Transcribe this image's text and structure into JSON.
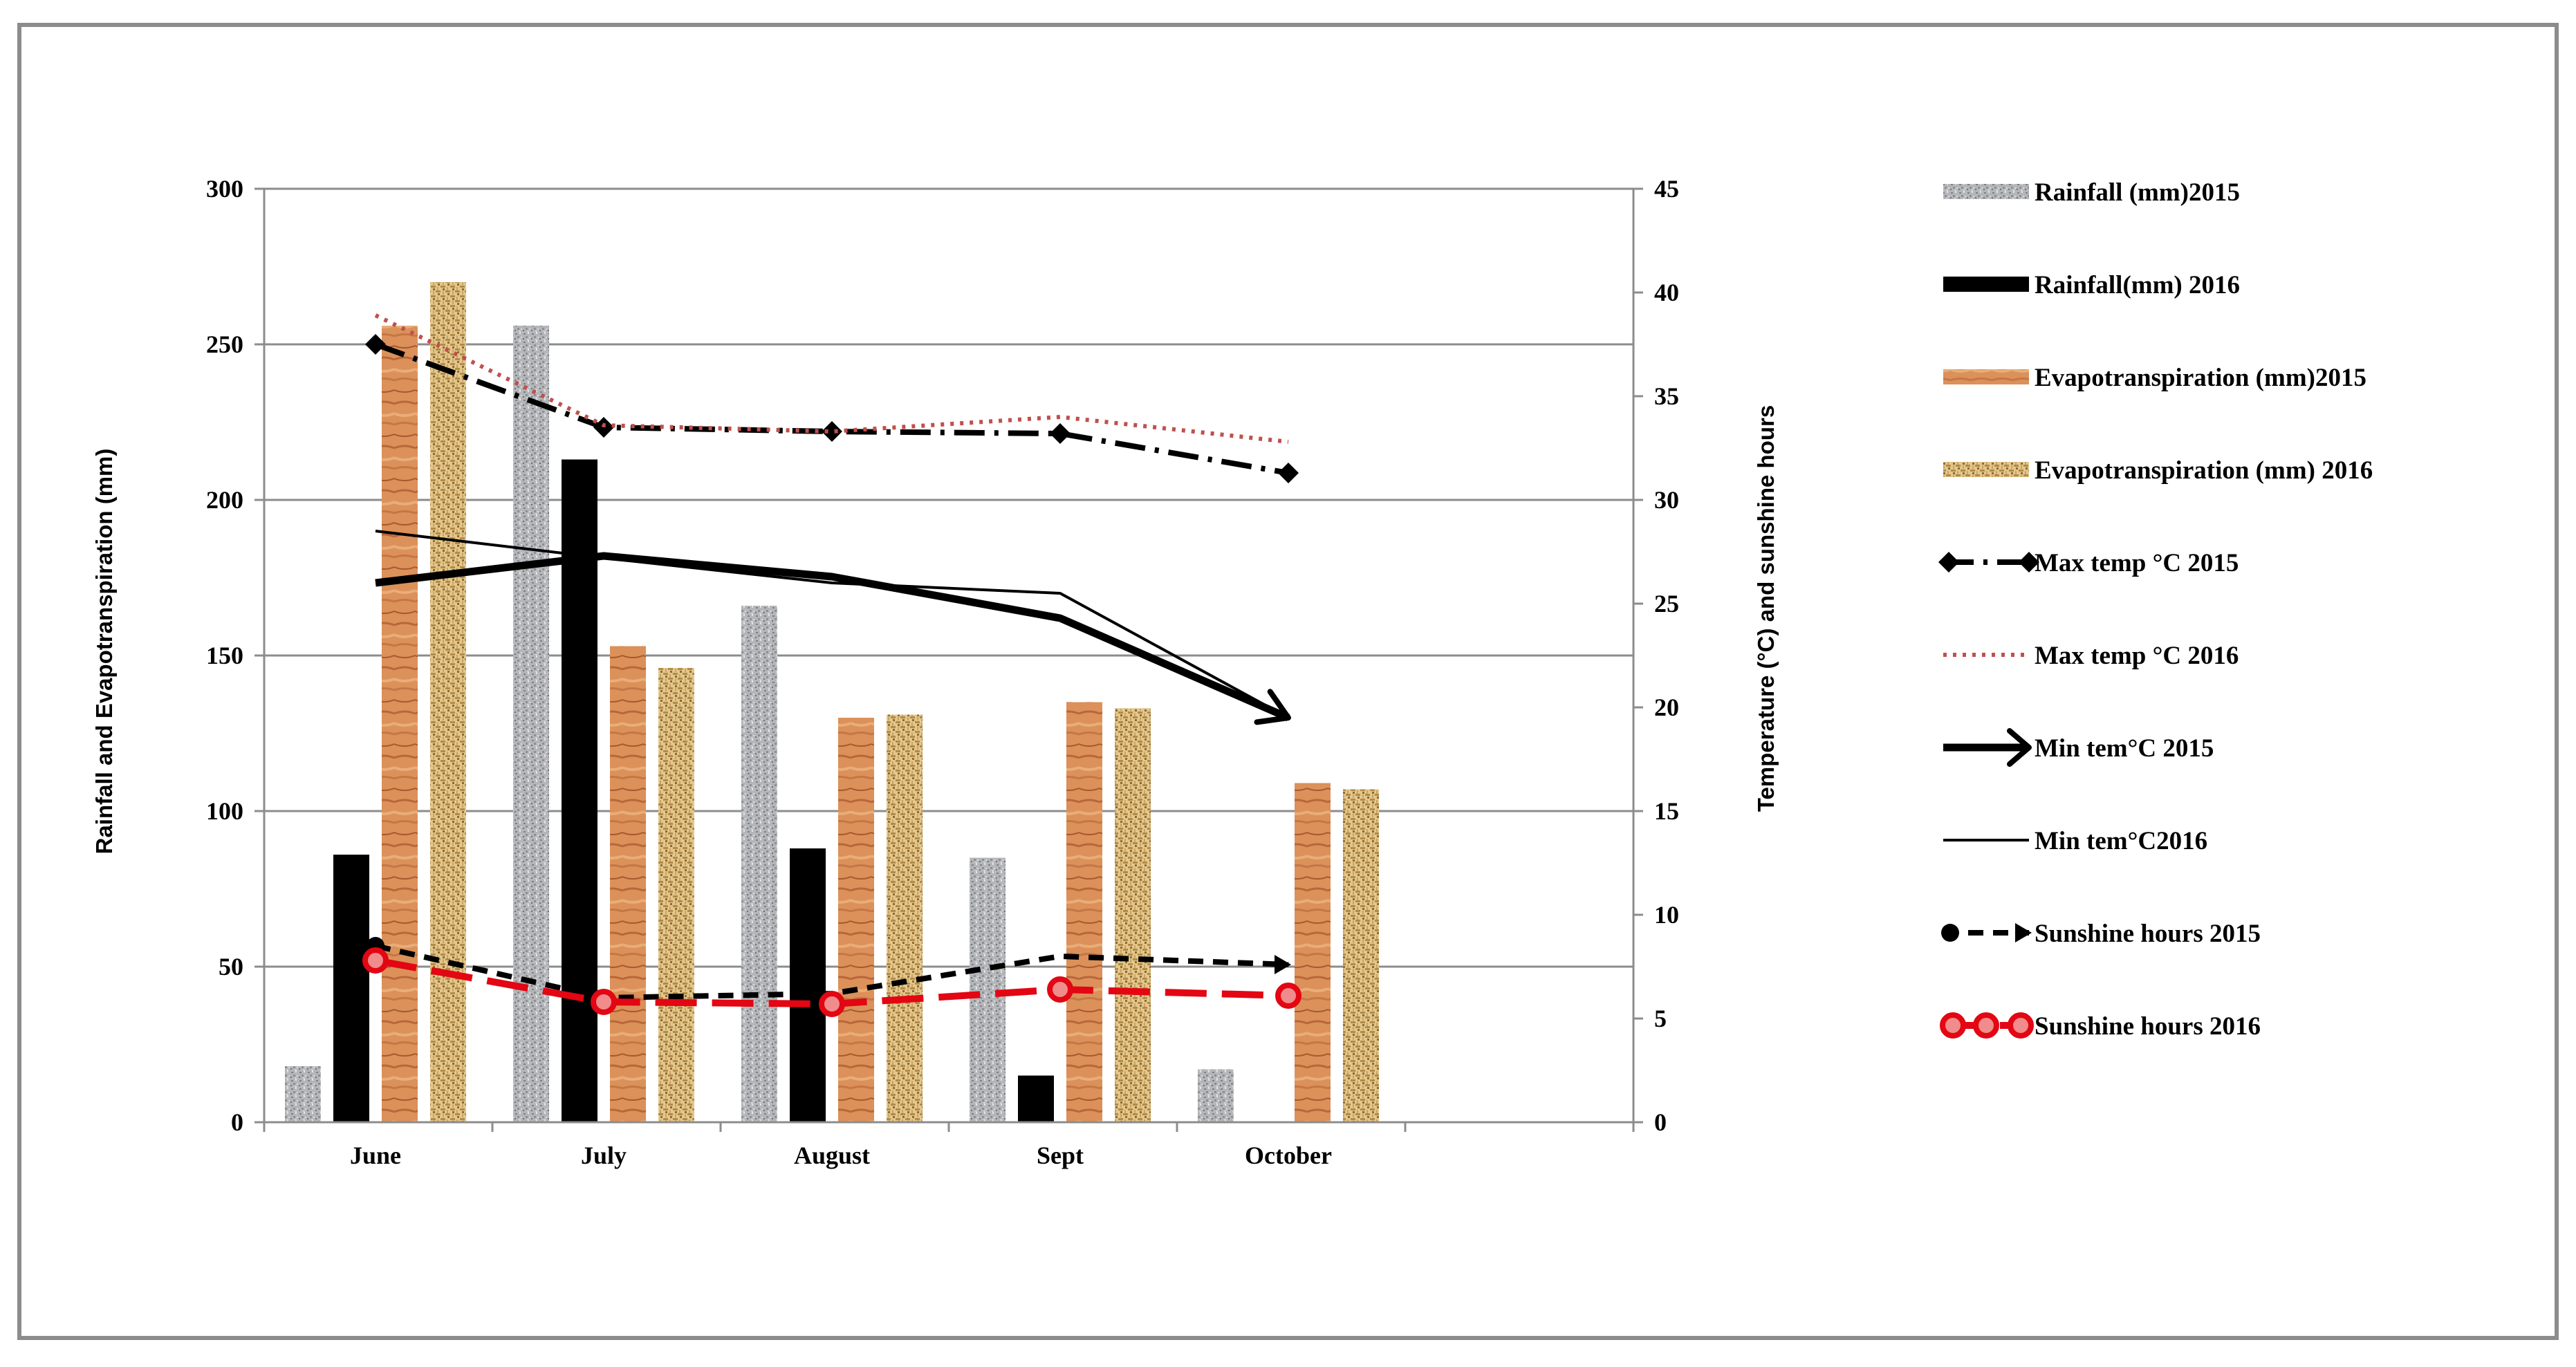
{
  "chart_data": {
    "type": "bar",
    "categories": [
      "June",
      "July",
      "August",
      "Sept",
      "October"
    ],
    "y_left": {
      "label": "Rainfall and Evapotranspiration  (mm)",
      "range": [
        0,
        300
      ],
      "ticks": [
        "0",
        "50",
        "100",
        "150",
        "200",
        "250",
        "300"
      ]
    },
    "y_right": {
      "label": "Temperature (°C) and sunshine hours",
      "range": [
        0,
        45
      ],
      "ticks": [
        "0",
        "5",
        "10",
        "15",
        "20",
        "25",
        "30",
        "35",
        "40",
        "45"
      ]
    },
    "grid": true,
    "legend_position": "right",
    "bar_series": [
      {
        "name": "Rainfall (mm)2015",
        "values": [
          18,
          256,
          166,
          85,
          17
        ],
        "color": "#a9abae",
        "pattern": "granite"
      },
      {
        "name": "Rainfall(mm) 2016",
        "values": [
          86,
          213,
          88,
          15,
          null
        ],
        "color": "#000000",
        "pattern": "solid"
      },
      {
        "name": "Evapotranspiration (mm)2015",
        "values": [
          256,
          153,
          130,
          135,
          109
        ],
        "color": "#d98a52",
        "pattern": "wood"
      },
      {
        "name": "Evapotranspiration (mm) 2016",
        "values": [
          270,
          146,
          131,
          133,
          107
        ],
        "color": "#d2b270",
        "pattern": "weave"
      }
    ],
    "line_series": [
      {
        "name": "Max temp °C 2015",
        "values": [
          37.5,
          33.5,
          33.3,
          33.2,
          31.3
        ],
        "color": "#000000",
        "style": "dash-dot",
        "marker": "diamond",
        "axis": "right"
      },
      {
        "name": "Max temp °C 2016",
        "values": [
          38.9,
          33.6,
          33.3,
          34,
          32.8
        ],
        "color": "#c0504d",
        "style": "dotted",
        "marker": "none",
        "axis": "right"
      },
      {
        "name": "Min tem°C 2015",
        "values": [
          26,
          27.3,
          26.3,
          24.3,
          19.5
        ],
        "color": "#000000",
        "style": "thick",
        "marker": "arrow",
        "axis": "right"
      },
      {
        "name": "Min tem°C2016",
        "values": [
          28.5,
          27.2,
          26,
          25.5,
          19.5
        ],
        "color": "#000000",
        "style": "thin",
        "marker": "none",
        "axis": "right"
      },
      {
        "name": "Sunshine hours 2015",
        "values": [
          8.5,
          6,
          6.2,
          8,
          7.6
        ],
        "color": "#000000",
        "style": "dashed",
        "marker": "circle-arrow",
        "axis": "right"
      },
      {
        "name": "Sunshine hours 2016",
        "values": [
          7.8,
          5.8,
          5.7,
          6.4,
          6.1
        ],
        "color": "#e30613",
        "style": "thick-dashed",
        "marker": "circle",
        "axis": "right"
      }
    ]
  }
}
